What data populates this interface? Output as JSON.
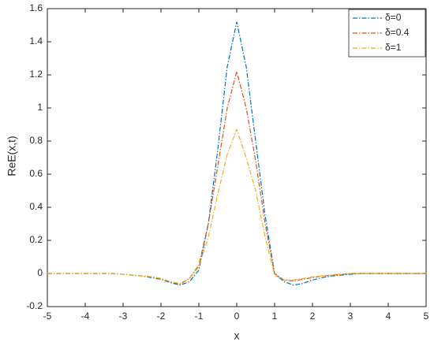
{
  "chart_data": {
    "type": "line",
    "xlabel": "x",
    "ylabel": "ReE(x,t)",
    "x": [
      -5,
      -4.75,
      -4.5,
      -4.25,
      -4,
      -3.75,
      -3.5,
      -3.25,
      -3,
      -2.75,
      -2.5,
      -2.25,
      -2,
      -1.75,
      -1.5,
      -1.25,
      -1,
      -0.75,
      -0.5,
      -0.25,
      0,
      0.25,
      0.5,
      0.75,
      1,
      1.25,
      1.5,
      1.75,
      2,
      2.25,
      2.5,
      2.75,
      3,
      3.25,
      3.5,
      3.75,
      4,
      4.25,
      4.5,
      4.75,
      5
    ],
    "series": [
      {
        "name": "δ=0",
        "color": "#0072bd",
        "values": [
          0,
          0,
          0,
          0,
          0,
          0,
          0,
          0,
          -0.005,
          -0.01,
          -0.015,
          -0.025,
          -0.035,
          -0.055,
          -0.07,
          -0.05,
          0.02,
          0.3,
          0.75,
          1.25,
          1.52,
          1.25,
          0.8,
          0.35,
          0,
          -0.05,
          -0.07,
          -0.06,
          -0.04,
          -0.025,
          -0.015,
          -0.01,
          -0.005,
          0,
          0,
          0,
          0,
          0,
          0,
          0,
          0
        ]
      },
      {
        "name": "δ=0.4",
        "color": "#d95319",
        "values": [
          0,
          0,
          0,
          0,
          0,
          0,
          0,
          0,
          -0.005,
          -0.01,
          -0.015,
          -0.02,
          -0.03,
          -0.05,
          -0.065,
          -0.03,
          0.05,
          0.3,
          0.65,
          1.0,
          1.22,
          1.0,
          0.68,
          0.3,
          0,
          -0.04,
          -0.045,
          -0.035,
          -0.025,
          -0.015,
          -0.01,
          -0.005,
          0,
          0,
          0,
          0,
          0,
          0,
          0,
          0,
          0
        ]
      },
      {
        "name": "δ=1",
        "color": "#edb120",
        "values": [
          0,
          0,
          0,
          0,
          0,
          0,
          0,
          0,
          -0.005,
          -0.01,
          -0.015,
          -0.02,
          -0.03,
          -0.05,
          -0.06,
          -0.03,
          0.04,
          0.22,
          0.48,
          0.72,
          0.87,
          0.7,
          0.5,
          0.22,
          -0.01,
          -0.04,
          -0.04,
          -0.03,
          -0.02,
          -0.015,
          -0.01,
          -0.005,
          0,
          0,
          0,
          0,
          0,
          0,
          0,
          0,
          0
        ]
      }
    ],
    "xlim": [
      -5,
      5
    ],
    "xticks": [
      -5,
      -4,
      -3,
      -2,
      -1,
      0,
      1,
      2,
      3,
      4,
      5
    ],
    "ylim": [
      -0.2,
      1.6
    ],
    "yticks": [
      -0.2,
      0,
      0.2,
      0.4,
      0.6,
      0.8,
      1,
      1.2,
      1.4,
      1.6
    ],
    "legend": "upper-right"
  }
}
